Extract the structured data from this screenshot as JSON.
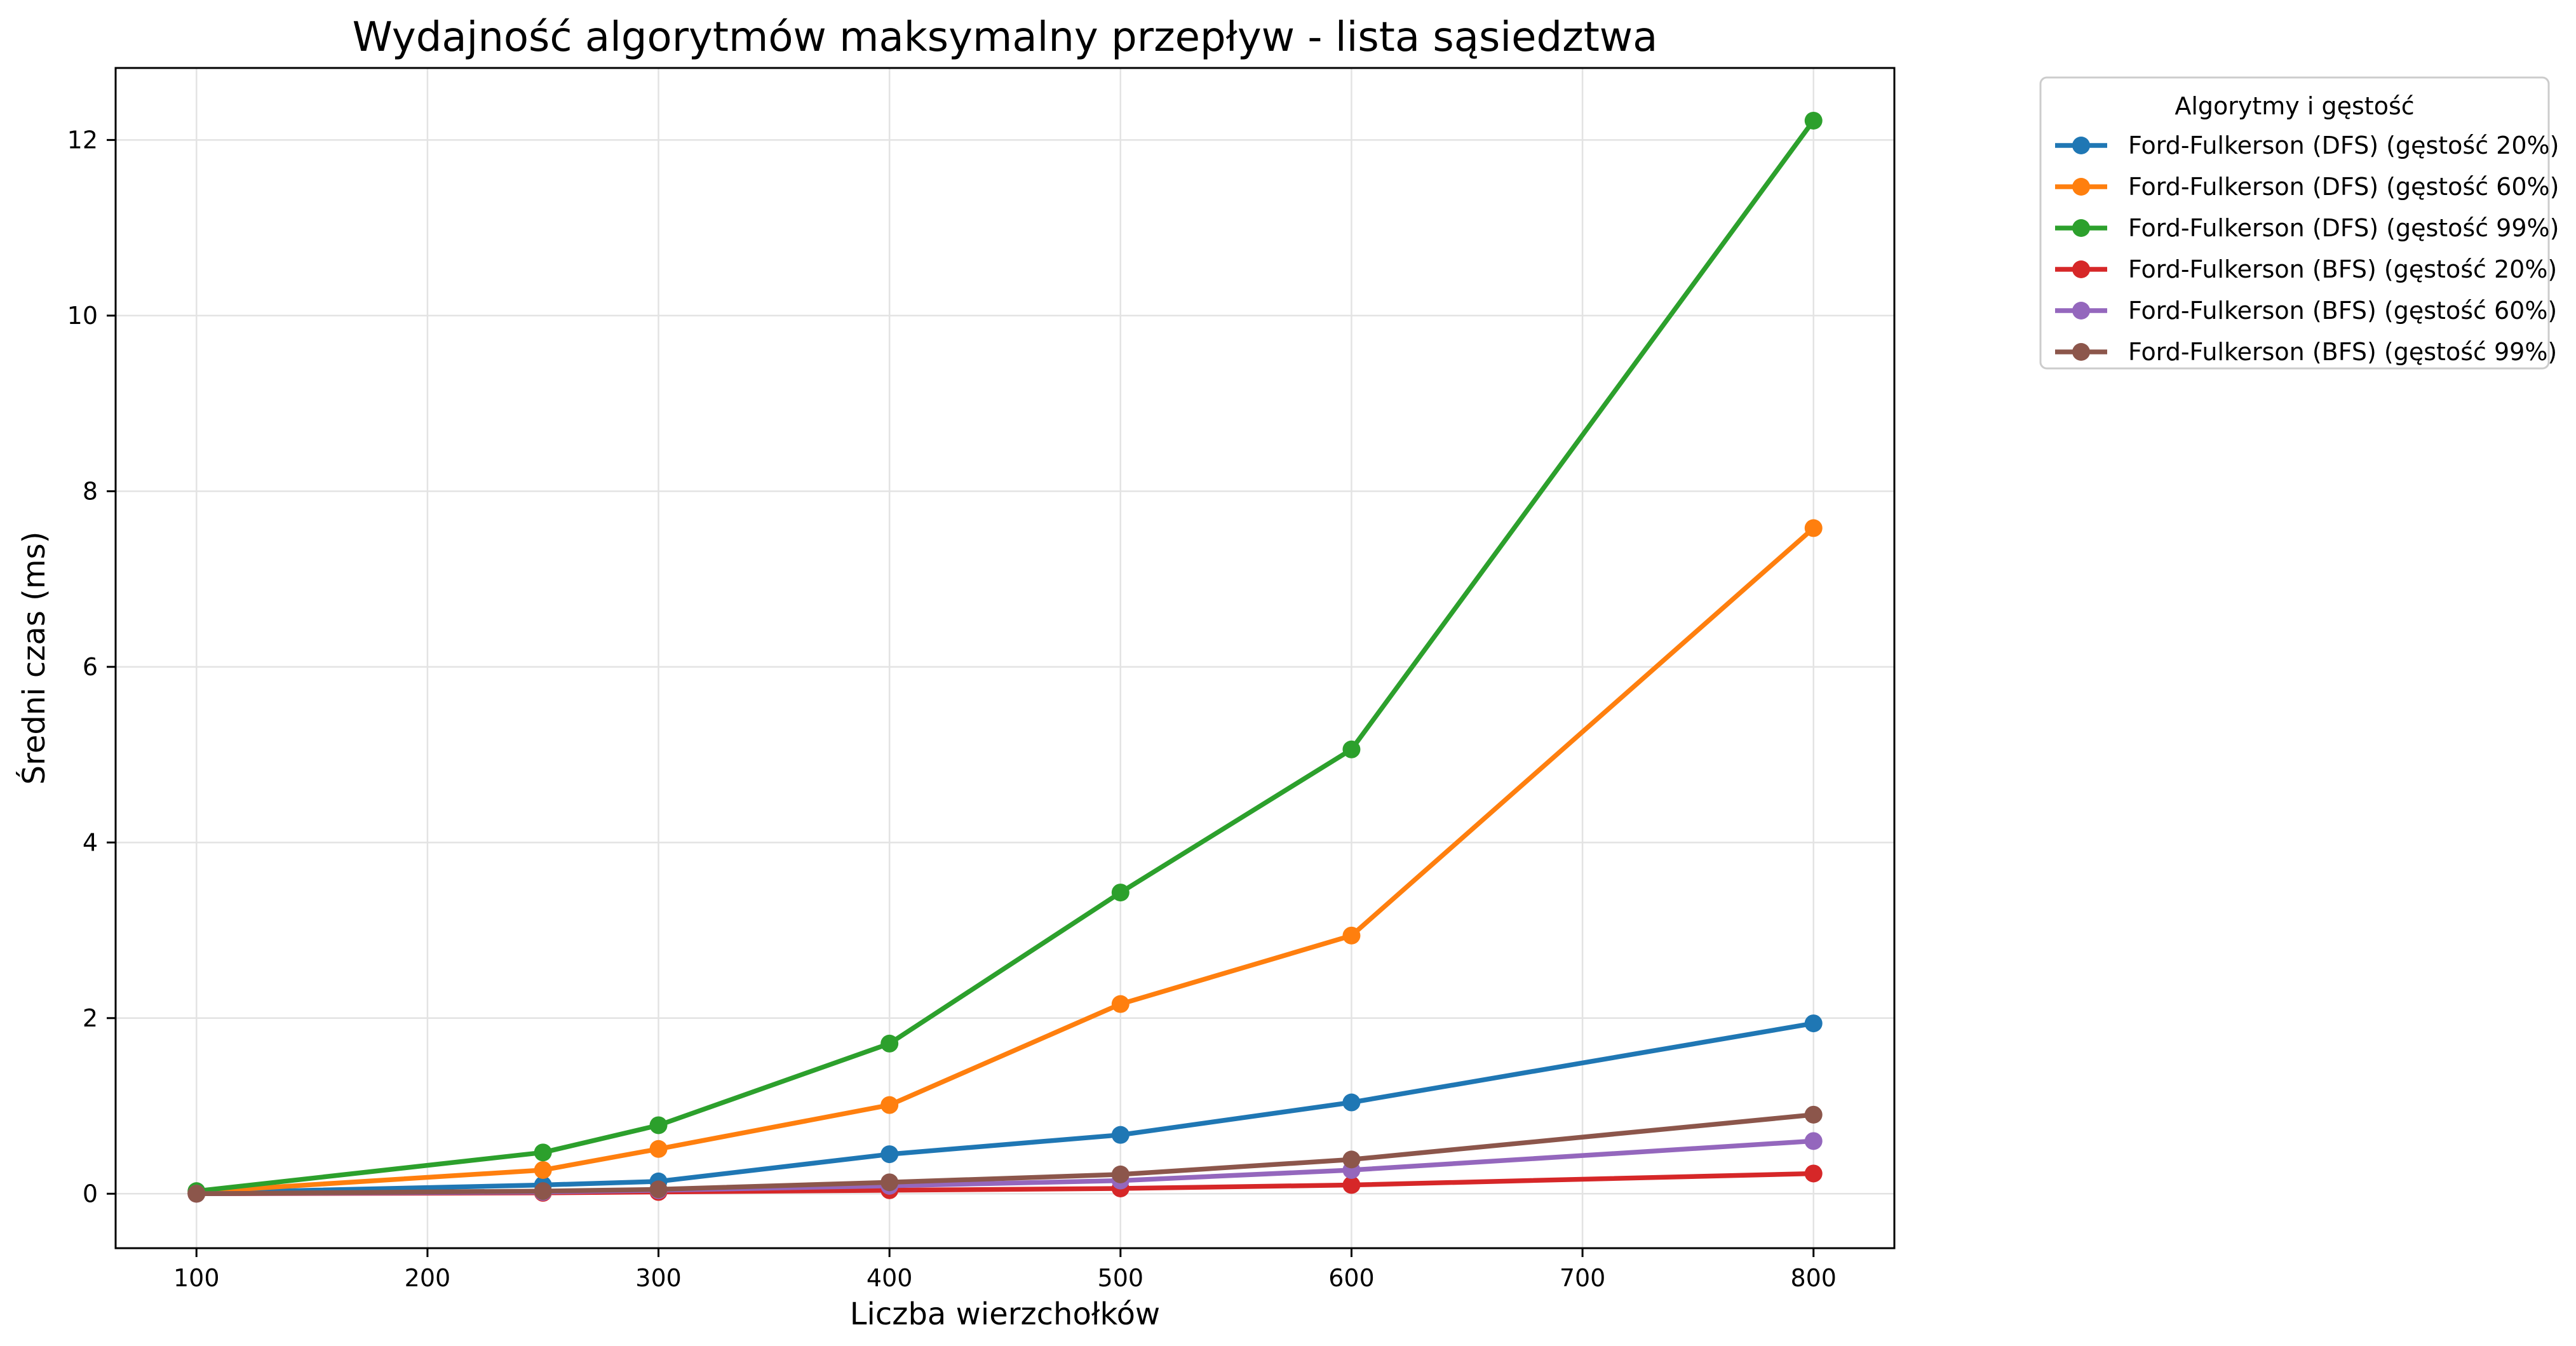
{
  "chart_data": {
    "type": "line",
    "title": "Wydajność algorytmów maksymalny przepływ - lista sąsiedztwa",
    "xlabel": "Liczba wierzchołków",
    "ylabel": "Średni czas (ms)",
    "xlim": [
      65,
      835
    ],
    "ylim": [
      -0.62,
      12.82
    ],
    "xticks": [
      100,
      200,
      300,
      400,
      500,
      600,
      700,
      800
    ],
    "yticks": [
      0,
      2,
      4,
      6,
      8,
      10,
      12
    ],
    "grid": true,
    "legend": {
      "title": "Algorytmy i gęstość",
      "position": "outside-top-right"
    },
    "x": [
      100,
      250,
      300,
      400,
      500,
      600,
      800
    ],
    "series": [
      {
        "name": "Ford-Fulkerson (DFS) (gęstość 20%)",
        "color": "#1f77b4",
        "values": [
          0.01,
          0.1,
          0.14,
          0.45,
          0.67,
          1.04,
          1.94
        ]
      },
      {
        "name": "Ford-Fulkerson (DFS) (gęstość 60%)",
        "color": "#ff7f0e",
        "values": [
          0.02,
          0.27,
          0.51,
          1.01,
          2.16,
          2.94,
          7.58
        ]
      },
      {
        "name": "Ford-Fulkerson (DFS) (gęstość 99%)",
        "color": "#2ca02c",
        "values": [
          0.03,
          0.47,
          0.78,
          1.71,
          3.43,
          5.06,
          12.22
        ]
      },
      {
        "name": "Ford-Fulkerson (BFS) (gęstość 20%)",
        "color": "#d62728",
        "values": [
          0.0,
          0.01,
          0.02,
          0.04,
          0.06,
          0.1,
          0.23
        ]
      },
      {
        "name": "Ford-Fulkerson (BFS) (gęstość 60%)",
        "color": "#9467bd",
        "values": [
          0.0,
          0.02,
          0.04,
          0.09,
          0.15,
          0.27,
          0.6
        ]
      },
      {
        "name": "Ford-Fulkerson (BFS) (gęstość 99%)",
        "color": "#8c564b",
        "values": [
          0.0,
          0.03,
          0.05,
          0.13,
          0.22,
          0.39,
          0.9
        ]
      }
    ]
  }
}
